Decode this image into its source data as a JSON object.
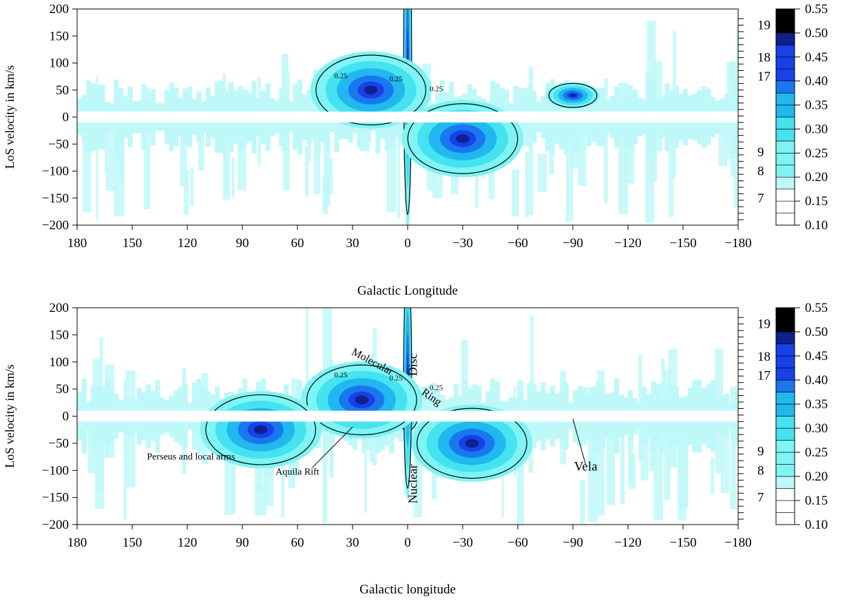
{
  "chart_data": [
    {
      "type": "heatmap",
      "xlabel": "Galactic Longitude",
      "ylabel": "LoS velocity in km/s",
      "x_ticks": [
        180,
        150,
        120,
        90,
        60,
        30,
        0,
        -30,
        -60,
        -90,
        -120,
        -150,
        -180
      ],
      "y_ticks": [
        200,
        150,
        100,
        50,
        0,
        -50,
        -100,
        -150,
        -200
      ],
      "xlim": [
        180,
        -180
      ],
      "ylim": [
        -200,
        200
      ],
      "right_axis_labels": [
        "19",
        "18",
        "17",
        "9",
        "8",
        "7"
      ],
      "colorbar": {
        "levels": [
          0.1,
          0.15,
          0.2,
          0.25,
          0.3,
          0.35,
          0.4,
          0.45,
          0.5,
          0.55
        ],
        "tick_labels": [
          "0.10",
          "0.15",
          "0.20",
          "0.25",
          "0.30",
          "0.35",
          "0.40",
          "0.45",
          "0.50",
          "0.55"
        ],
        "colors": [
          "#ffffff",
          "#bff8f8",
          "#7ff4f4",
          "#45e2f0",
          "#20b8ee",
          "#1a78ee",
          "#1642e8",
          "#10208c",
          "#000000"
        ]
      },
      "contour_label": "0.25",
      "features": [
        {
          "name": "bright core",
          "l": 0,
          "v": 15
        },
        {
          "name": "central spike",
          "l": 0,
          "v": 190
        },
        {
          "name": "inner disc",
          "l": 20,
          "v": 50
        },
        {
          "name": "fourth quadrant",
          "l": -30,
          "v": -40
        },
        {
          "name": "vela clump",
          "l": -90,
          "v": 40
        }
      ],
      "annotations": []
    },
    {
      "type": "heatmap",
      "xlabel": "Galactic longitude",
      "ylabel": "LoS velocity in km/s",
      "x_ticks": [
        180,
        150,
        120,
        90,
        60,
        30,
        0,
        -30,
        -60,
        -90,
        -120,
        -150,
        -180
      ],
      "y_ticks": [
        200,
        150,
        100,
        50,
        0,
        -50,
        -100,
        -150,
        -200
      ],
      "xlim": [
        180,
        -180
      ],
      "ylim": [
        -200,
        200
      ],
      "right_axis_labels": [
        "19",
        "18",
        "17",
        "9",
        "8",
        "7"
      ],
      "colorbar": {
        "levels": [
          0.1,
          0.15,
          0.2,
          0.25,
          0.3,
          0.35,
          0.4,
          0.45,
          0.5,
          0.55
        ],
        "tick_labels": [
          "0.10",
          "0.15",
          "0.20",
          "0.25",
          "0.30",
          "0.35",
          "0.40",
          "0.45",
          "0.50",
          "0.55"
        ],
        "colors": [
          "#ffffff",
          "#bff8f8",
          "#7ff4f4",
          "#45e2f0",
          "#20b8ee",
          "#1a78ee",
          "#1642e8",
          "#10208c",
          "#000000"
        ]
      },
      "contour_label": "0.25",
      "features": [
        {
          "name": "bright core",
          "l": 0,
          "v": 0
        },
        {
          "name": "central spike",
          "l": 0,
          "v": 140
        },
        {
          "name": "inner disc",
          "l": 25,
          "v": 30
        },
        {
          "name": "fourth quadrant",
          "l": -35,
          "v": -50
        },
        {
          "name": "perseus",
          "l": 80,
          "v": -25
        }
      ],
      "annotations": [
        {
          "text": "Molecular",
          "l": 20,
          "v": 95
        },
        {
          "text": "Disc",
          "l": -5,
          "v": 95
        },
        {
          "text": "Ring",
          "l": -12,
          "v": 30
        },
        {
          "text": "Perseus and local arms",
          "l": 118,
          "v": -80
        },
        {
          "text": "Aquila Rift",
          "l": 60,
          "v": -108
        },
        {
          "text": "Nuclear",
          "l": -5,
          "v": -125
        },
        {
          "text": "Vela",
          "l": -97,
          "v": -100
        }
      ]
    }
  ]
}
